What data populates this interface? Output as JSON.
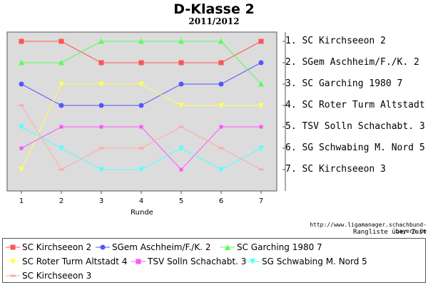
{
  "chart_data": {
    "type": "line",
    "title": "D-Klasse 2",
    "subtitle": "2011/2012",
    "xlabel": "Runde",
    "x": [
      1,
      2,
      3,
      4,
      5,
      6,
      7
    ],
    "ylim": [
      1,
      7
    ],
    "y_inverted": true,
    "grid": false,
    "legend_position": "bottom",
    "series": [
      {
        "name": "SC Kirchseeon 2",
        "color": "#ff5555",
        "marker": "square",
        "values": [
          1,
          1,
          2,
          2,
          2,
          2,
          1
        ]
      },
      {
        "name": "SGem Aschheim/F./K. 2",
        "color": "#5555ff",
        "marker": "circle",
        "values": [
          3,
          4,
          4,
          4,
          3,
          3,
          2
        ]
      },
      {
        "name": "SC Garching 1980 7",
        "color": "#55ff55",
        "marker": "triangle-up",
        "values": [
          2,
          2,
          1,
          1,
          1,
          1,
          3
        ]
      },
      {
        "name": "SC Roter Turm Altstadt 4",
        "color": "#ffff55",
        "marker": "triangle-down",
        "values": [
          7,
          3,
          3,
          3,
          4,
          4,
          4
        ]
      },
      {
        "name": "TSV Solln Schachabt. 3",
        "color": "#ff55ff",
        "marker": "square-small",
        "values": [
          6,
          5,
          5,
          5,
          7,
          5,
          5
        ]
      },
      {
        "name": "SG Schwabing M. Nord 5",
        "color": "#55ffff",
        "marker": "triangle-down",
        "values": [
          5,
          6,
          7,
          7,
          6,
          7,
          6
        ]
      },
      {
        "name": "SC Kirchseeon 3",
        "color": "#ffaaaa",
        "marker": "dash",
        "values": [
          4,
          7,
          6,
          6,
          5,
          6,
          7
        ]
      }
    ],
    "final_ranking": [
      "1. SC Kirchseeon 2",
      "2. SGem Aschheim/F./K. 2",
      "3. SC Garching 1980 7",
      "4. SC Roter Turm Altstadt 4",
      "5. TSV Solln Schachabt. 3",
      "6. SG Schwabing M. Nord 5",
      "7. SC Kirchseeon 3"
    ]
  },
  "source": {
    "url": "http://www.ligamanager.schachbund-bayern.de",
    "caption": "Rangliste über Zeit"
  },
  "colors": {
    "plot_background": "#dcdcdc",
    "axis": "#555555"
  }
}
